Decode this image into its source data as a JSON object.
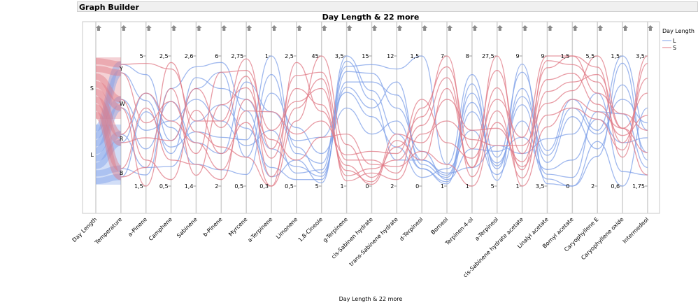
{
  "window": {
    "title": "Graph Builder"
  },
  "chart_data": {
    "type": "parallel",
    "title": "Day Length & 22 more",
    "xlabel": "Day Length & 22 more",
    "legend": {
      "title": "Day Length",
      "placement": "right",
      "items": [
        {
          "label": "L",
          "color": "#7fa0e8"
        },
        {
          "label": "S",
          "color": "#e07a86"
        }
      ]
    },
    "categorical_axes": [
      {
        "name": "Day Length",
        "levels": [
          "S",
          "L"
        ]
      },
      {
        "name": "Temperature",
        "levels": [
          "Y",
          "W",
          "R",
          "B"
        ]
      }
    ],
    "numeric_axes": [
      {
        "name": "a-Pinene",
        "max": "5",
        "min": "1,5",
        "range": [
          1.5,
          5
        ]
      },
      {
        "name": "Camphene",
        "max": "2,5",
        "min": "0,5",
        "range": [
          0.5,
          2.5
        ]
      },
      {
        "name": "Sabinene",
        "max": "2,6",
        "min": "1,4",
        "range": [
          1.4,
          2.6
        ]
      },
      {
        "name": "b-Pinene",
        "max": "6",
        "min": "2",
        "range": [
          2,
          6
        ]
      },
      {
        "name": "Myrcene",
        "max": "2,75",
        "min": "0,5",
        "range": [
          0.5,
          2.75
        ]
      },
      {
        "name": "a-Terpinene",
        "max": "1",
        "min": "0,3",
        "range": [
          0.3,
          1
        ]
      },
      {
        "name": "Limonene",
        "max": "2,5",
        "min": "0,5",
        "range": [
          0.5,
          2.5
        ]
      },
      {
        "name": "1,8-Cineole",
        "max": "45",
        "min": "5",
        "range": [
          5,
          45
        ]
      },
      {
        "name": "g-Terpinene",
        "max": "3,5",
        "min": "1",
        "range": [
          1,
          3.5
        ]
      },
      {
        "name": "cis-Sabinen hydrate",
        "max": "15",
        "min": "0",
        "range": [
          0,
          15
        ]
      },
      {
        "name": "trans-Sabinene hydrate",
        "max": "12",
        "min": "2",
        "range": [
          2,
          12
        ]
      },
      {
        "name": "d-Terpineol",
        "max": "1,5",
        "min": "0",
        "range": [
          0,
          1.5
        ]
      },
      {
        "name": "Borneol",
        "max": "7",
        "min": "1",
        "range": [
          1,
          7
        ]
      },
      {
        "name": "Terpinen-4-ol",
        "max": "8",
        "min": "1",
        "range": [
          1,
          8
        ]
      },
      {
        "name": "a-Terpineol",
        "max": "27,5",
        "min": "5",
        "range": [
          5,
          27.5
        ]
      },
      {
        "name": "cis-Sabinene hydrate acetate",
        "max": "9",
        "min": "1",
        "range": [
          1,
          9
        ]
      },
      {
        "name": "Linalyl acetate",
        "max": "9",
        "min": "3,5",
        "range": [
          3.5,
          9
        ]
      },
      {
        "name": "Bornyl acetate",
        "max": "1,5",
        "min": "0",
        "range": [
          0,
          1.5
        ]
      },
      {
        "name": "Caryophyllene E",
        "max": "5,5",
        "min": "2",
        "range": [
          2,
          5.5
        ]
      },
      {
        "name": "Caryophyllene oxide",
        "max": "1,5",
        "min": "0,6",
        "range": [
          0.6,
          1.5
        ]
      },
      {
        "name": "Intermedeol",
        "max": "3,5",
        "min": "1,75",
        "range": [
          1.75,
          3.5
        ]
      }
    ],
    "rows": [
      [
        "L",
        "Y",
        4.5,
        1.2,
        2.3,
        5.5,
        1.0,
        0.9,
        1.0,
        12,
        3.3,
        14,
        11,
        1.5,
        2,
        7,
        10,
        8,
        5,
        1.0,
        3.5,
        1.5,
        2.5
      ],
      [
        "L",
        "Y",
        3.8,
        1.0,
        2.4,
        5.0,
        2.0,
        0.5,
        0.8,
        8,
        3.0,
        12,
        9,
        0.3,
        1.5,
        6,
        8,
        7,
        4.5,
        0.8,
        3.0,
        1.3,
        2.2
      ],
      [
        "L",
        "W",
        3.0,
        1.5,
        2.2,
        4.0,
        1.2,
        0.6,
        0.7,
        10,
        3.5,
        11,
        6,
        0.2,
        1.2,
        5,
        9,
        6,
        4,
        0.1,
        4,
        1.1,
        2.0
      ],
      [
        "L",
        "W",
        2.5,
        1.8,
        1.8,
        3.0,
        2.3,
        0.7,
        1.2,
        20,
        2.8,
        8,
        5,
        0.1,
        1.8,
        4,
        7,
        5,
        3.8,
        0.0,
        3.2,
        0.6,
        2.8
      ],
      [
        "L",
        "R",
        2.0,
        0.8,
        2.0,
        4.5,
        1.5,
        0.4,
        0.6,
        7,
        3.2,
        13,
        8,
        0.4,
        1.3,
        3,
        11,
        4,
        4.2,
        0.3,
        3.8,
        0.9,
        2.4
      ],
      [
        "L",
        "R",
        4.0,
        1.4,
        1.6,
        2.5,
        0.7,
        0.8,
        1.4,
        15,
        2.5,
        6,
        7,
        0.2,
        1.1,
        6.5,
        6,
        8.5,
        3.6,
        0.0,
        2.8,
        1.45,
        2.1
      ],
      [
        "L",
        "B",
        1.8,
        2.0,
        2.5,
        5.8,
        1.8,
        0.35,
        0.9,
        6,
        3.4,
        10,
        4,
        0.3,
        1.6,
        2,
        12,
        3,
        5.5,
        0.6,
        4.5,
        0.7,
        1.9
      ],
      [
        "L",
        "B",
        3.5,
        1.1,
        1.9,
        3.5,
        1.3,
        1.0,
        1.1,
        9,
        2.9,
        9,
        10,
        0.25,
        1.4,
        5.5,
        8.5,
        6.5,
        4.8,
        0.9,
        3.4,
        1.2,
        2.6
      ],
      [
        "S",
        "Y",
        4.8,
        2.3,
        2.0,
        4.0,
        2.7,
        0.5,
        2.2,
        40,
        1.5,
        3,
        3,
        0.9,
        6.5,
        3,
        25,
        3,
        8.5,
        1.5,
        5.2,
        0.8,
        3.4
      ],
      [
        "S",
        "Y",
        3.2,
        1.8,
        1.7,
        5.5,
        2.5,
        0.6,
        1.8,
        35,
        1.2,
        2,
        4,
        0.7,
        6,
        2,
        22,
        2,
        8.8,
        1.4,
        4.8,
        0.9,
        3.2
      ],
      [
        "S",
        "W",
        2.2,
        0.6,
        2.1,
        3.0,
        1.6,
        0.3,
        1.5,
        45,
        1.8,
        1,
        5,
        0.8,
        7,
        1.5,
        18,
        1.5,
        7.5,
        1.2,
        5.0,
        1.0,
        3.0
      ],
      [
        "S",
        "W",
        1.5,
        2.0,
        1.5,
        4.5,
        2.2,
        0.45,
        2.0,
        30,
        1.3,
        0.5,
        6,
        0.5,
        5,
        4,
        15,
        2.5,
        8,
        1.3,
        4.2,
        0.95,
        2.7
      ],
      [
        "S",
        "R",
        4.0,
        1.5,
        1.8,
        2.5,
        1.8,
        0.7,
        1.3,
        25,
        1.6,
        4,
        4.5,
        1.0,
        3,
        2.5,
        20,
        4,
        9,
        1.5,
        4.5,
        1.1,
        2.5
      ],
      [
        "S",
        "R",
        2.8,
        1.2,
        2.3,
        3.8,
        2.4,
        0.35,
        1.7,
        38,
        1.1,
        1.5,
        2.5,
        0.6,
        4,
        3.5,
        12,
        3.5,
        7,
        1.1,
        5.5,
        1.0,
        2.2
      ],
      [
        "S",
        "B",
        3.6,
        0.9,
        1.6,
        2.2,
        2.0,
        0.55,
        0.9,
        20,
        2.0,
        2.5,
        3.5,
        0.4,
        2,
        1,
        16,
        2.2,
        6.5,
        0.9,
        3.8,
        0.85,
        3.5
      ],
      [
        "S",
        "B",
        2.0,
        2.4,
        1.9,
        3.2,
        1.0,
        0.3,
        2.4,
        28,
        1.4,
        0.2,
        5.5,
        0.3,
        5.5,
        2,
        27.5,
        1,
        6,
        1.0,
        4.0,
        1.0,
        1.9
      ]
    ]
  }
}
